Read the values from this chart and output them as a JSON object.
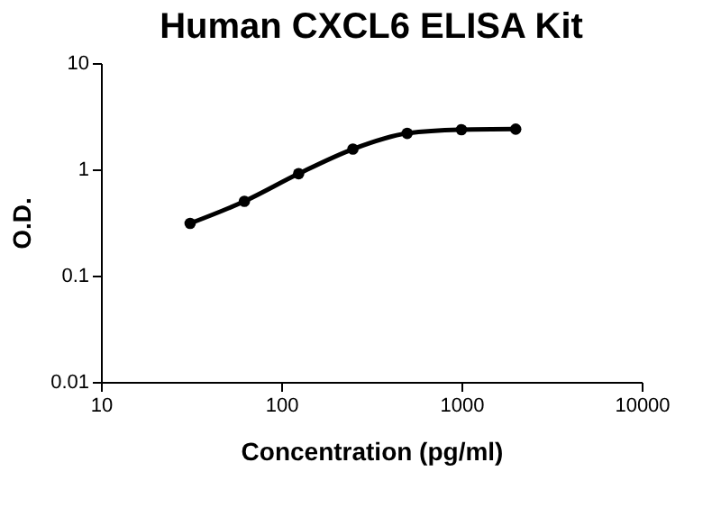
{
  "chart_data": {
    "type": "line",
    "title": "Human CXCL6 ELISA Kit",
    "xlabel": "Concentration (pg/ml)",
    "ylabel": "O.D.",
    "x": [
      31.25,
      62.5,
      125,
      250,
      500,
      1000,
      2000
    ],
    "series": [
      {
        "color": "#000000",
        "values": [
          0.31,
          0.5,
          0.91,
          1.55,
          2.18,
          2.36,
          2.39
        ]
      }
    ],
    "log": "xy",
    "xlim": [
      10,
      10000
    ],
    "xticks": [
      10,
      100,
      1000,
      10000
    ],
    "ylim": [
      0.01,
      10
    ],
    "yticks": [
      0.01,
      0.1,
      1,
      10
    ],
    "grid": false,
    "legend": false,
    "marker": "circle",
    "line_style": "solid"
  }
}
